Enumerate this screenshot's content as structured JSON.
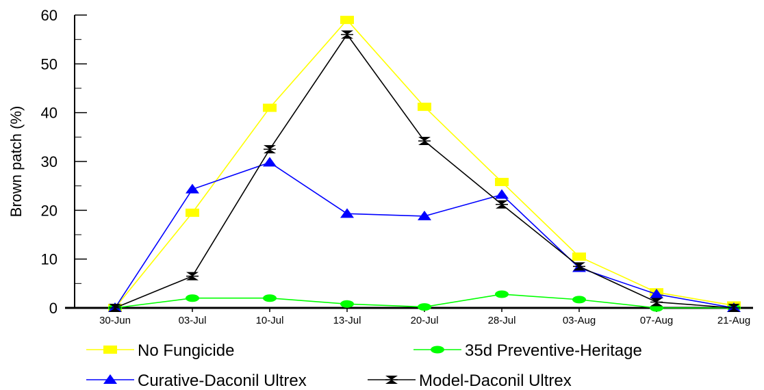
{
  "chart_data": {
    "type": "line",
    "title": "",
    "xlabel": "",
    "ylabel": "Brown patch (%)",
    "ylim": [
      0,
      60
    ],
    "yticks": [
      0,
      10,
      20,
      30,
      40,
      50,
      60
    ],
    "grid": false,
    "legend_position": "bottom",
    "categories": [
      "30-Jun",
      "03-Jul",
      "10-Jul",
      "13-Jul",
      "20-Jul",
      "28-Jul",
      "03-Aug",
      "07-Aug",
      "21-Aug"
    ],
    "series": [
      {
        "name": "No Fungicide",
        "color": "#ffff00",
        "marker": "square",
        "values": [
          0,
          19.5,
          41,
          59,
          41.2,
          25.8,
          10.5,
          3.2,
          0.5
        ]
      },
      {
        "name": "35d Preventive-Heritage",
        "color": "#00ff00",
        "marker": "circle",
        "values": [
          0,
          2,
          2,
          0.8,
          0.2,
          2.8,
          1.7,
          0,
          0
        ]
      },
      {
        "name": "Curative-Daconil Ultrex",
        "color": "#0000ff",
        "marker": "triangle",
        "values": [
          0,
          24.3,
          29.8,
          19.3,
          18.8,
          23.2,
          8.2,
          2.8,
          0
        ]
      },
      {
        "name": "Model-Daconil Ultrex",
        "color": "#000000",
        "marker": "bowtie",
        "values": [
          0,
          6.5,
          32.5,
          56,
          34.2,
          21.2,
          8.5,
          1.2,
          0
        ]
      }
    ]
  }
}
